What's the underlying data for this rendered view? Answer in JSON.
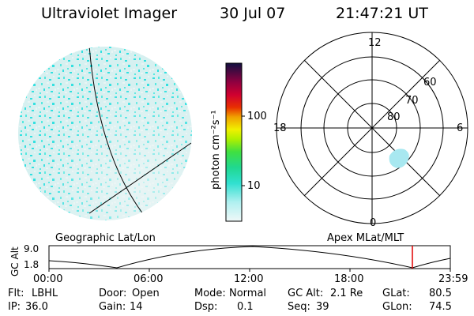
{
  "header": {
    "title": "Ultraviolet Imager",
    "date": "30 Jul 07",
    "time": "21:47:21 UT"
  },
  "colorbar": {
    "unit_label": "photon cm⁻²s⁻¹",
    "ticks": [
      "100",
      "10"
    ]
  },
  "polar": {
    "mlt_labels": {
      "top": "12",
      "bottom": "0",
      "left": "18",
      "right": "6"
    },
    "lat_labels": [
      "60",
      "70",
      "80"
    ]
  },
  "left_panel_title": "Geographic Lat/Lon",
  "right_panel_title": "Apex MLat/MLT",
  "altitude_plot": {
    "ylabel": "GC Alt",
    "yticks": [
      "9.0",
      "1.8"
    ],
    "xticks": [
      "00:00",
      "06:00",
      "12:00",
      "18:00",
      "23:59"
    ]
  },
  "info": {
    "flt_label": "Flt:",
    "flt_value": "LBHL",
    "ip_label": "IP:",
    "ip_value": "36.0",
    "door_label": "Door:",
    "door_value": "Open",
    "gain_label": "Gain:",
    "gain_value": "14",
    "mode_label": "Mode:",
    "mode_value": "Normal",
    "dsp_label": "Dsp:",
    "dsp_value": "0.1",
    "gcalt_label": "GC Alt:",
    "gcalt_value": "2.1 Re",
    "seq_label": "Seq:",
    "seq_value": "39",
    "glat_label": "GLat:",
    "glat_value": "80.5",
    "glon_label": "GLon:",
    "glon_value": "74.5"
  },
  "colors": {
    "cyan": "#33e0e0",
    "pale_cyan": "#c8eeee",
    "marker": "#e00000"
  }
}
